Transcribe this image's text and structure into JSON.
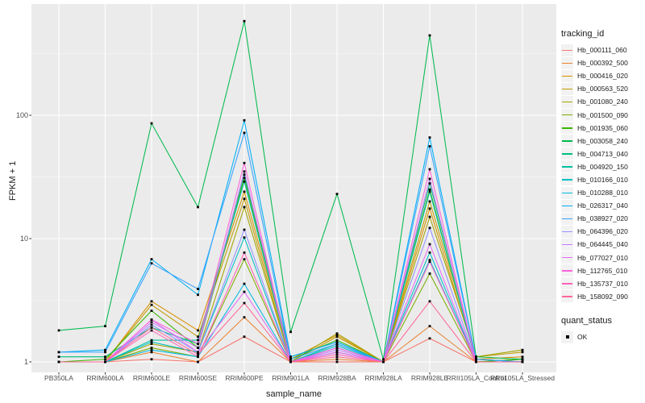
{
  "chart_data": {
    "type": "line",
    "title": "",
    "xlabel": "sample_name",
    "ylabel": "FPKM + 1",
    "y_scale": "log10",
    "y_ticks": [
      1,
      10,
      100
    ],
    "y_minor_ticks": [
      3.162,
      31.62,
      316.2
    ],
    "ylim_log": [
      0.82,
      780
    ],
    "grid": "on",
    "panel_background": "#EBEBEB",
    "gridline_color": "#FFFFFF",
    "point_marker": "black-square",
    "categories": [
      "PB350LA",
      "RRIM600LA",
      "RRIM600LE",
      "RRIM600SE",
      "RRIM600PE",
      "RRIM901LA",
      "RRIM928BA",
      "RRIM928LA",
      "RRIM928LE",
      "RRII105LA_Control",
      "RRII105LA_Stressed"
    ],
    "series": [
      {
        "name": "Hb_000111_060",
        "color": "#F8766D",
        "values": [
          1.0,
          1.0,
          1.05,
          1.0,
          1.6,
          1.0,
          1.0,
          1.0,
          1.55,
          1.0,
          1.0
        ]
      },
      {
        "name": "Hb_000392_500",
        "color": "#EA8331",
        "values": [
          1.0,
          1.0,
          1.2,
          1.0,
          2.3,
          1.0,
          1.05,
          1.0,
          1.95,
          1.0,
          1.05
        ]
      },
      {
        "name": "Hb_000416_020",
        "color": "#D89000",
        "values": [
          1.0,
          1.0,
          3.1,
          1.8,
          24,
          1.05,
          1.65,
          1.0,
          17.5,
          1.05,
          1.1
        ]
      },
      {
        "name": "Hb_000563_520",
        "color": "#C09B00",
        "values": [
          1.0,
          1.0,
          2.9,
          1.6,
          21,
          1.0,
          1.6,
          1.0,
          20,
          1.1,
          1.2
        ]
      },
      {
        "name": "Hb_001080_240",
        "color": "#A3A500",
        "values": [
          1.0,
          1.0,
          1.4,
          1.2,
          18,
          1.0,
          1.7,
          1.0,
          15,
          1.1,
          1.25
        ]
      },
      {
        "name": "Hb_001500_090",
        "color": "#7CAE00",
        "values": [
          1.0,
          1.0,
          1.3,
          1.1,
          6.8,
          1.0,
          1.2,
          1.0,
          5.2,
          1.0,
          1.05
        ]
      },
      {
        "name": "Hb_001935_060",
        "color": "#39B600",
        "values": [
          1.0,
          1.05,
          2.6,
          1.3,
          31,
          1.05,
          1.5,
          1.0,
          25,
          1.0,
          1.05
        ]
      },
      {
        "name": "Hb_003058_240",
        "color": "#00BB4E",
        "values": [
          1.8,
          1.95,
          86,
          18,
          580,
          1.75,
          23,
          1.05,
          444,
          1.1,
          1.05
        ]
      },
      {
        "name": "Hb_004713_040",
        "color": "#00BF7D",
        "values": [
          1.1,
          1.1,
          1.9,
          1.4,
          33,
          1.1,
          1.45,
          1.0,
          28,
          1.05,
          1.0
        ]
      },
      {
        "name": "Hb_004920_150",
        "color": "#00C1A3",
        "values": [
          1.0,
          1.0,
          1.5,
          1.5,
          29,
          1.0,
          1.4,
          1.0,
          24,
          1.0,
          1.0
        ]
      },
      {
        "name": "Hb_010166_010",
        "color": "#00BFC4",
        "values": [
          1.0,
          1.0,
          1.45,
          1.2,
          10.2,
          1.0,
          1.35,
          1.0,
          7.7,
          1.0,
          1.0
        ]
      },
      {
        "name": "Hb_010288_010",
        "color": "#00BAE0",
        "values": [
          1.0,
          1.0,
          1.25,
          1.1,
          4.3,
          1.0,
          1.3,
          1.0,
          6.7,
          1.0,
          1.0
        ]
      },
      {
        "name": "Hb_026317_040",
        "color": "#00B0F6",
        "values": [
          1.2,
          1.25,
          6.8,
          3.5,
          91,
          1.1,
          1.45,
          1.0,
          66,
          1.05,
          1.0
        ]
      },
      {
        "name": "Hb_038927_020",
        "color": "#35A2FF",
        "values": [
          1.2,
          1.2,
          6.3,
          3.9,
          72,
          1.05,
          1.4,
          1.0,
          56,
          1.05,
          1.0
        ]
      },
      {
        "name": "Hb_064396_020",
        "color": "#9590FF",
        "values": [
          1.0,
          1.0,
          2.0,
          1.2,
          11.8,
          1.0,
          1.2,
          1.0,
          12.2,
          1.0,
          1.0
        ]
      },
      {
        "name": "Hb_064445_040",
        "color": "#C77CFF",
        "values": [
          1.0,
          1.0,
          2.1,
          1.3,
          35,
          1.0,
          1.25,
          1.0,
          30.5,
          1.0,
          1.0
        ]
      },
      {
        "name": "Hb_077027_010",
        "color": "#E76BF3",
        "values": [
          1.0,
          1.0,
          2.2,
          1.2,
          3.7,
          1.0,
          1.2,
          1.0,
          9.0,
          1.0,
          1.0
        ]
      },
      {
        "name": "Hb_112765_010",
        "color": "#FA62DB",
        "values": [
          1.0,
          1.0,
          2.2,
          1.4,
          41,
          1.0,
          1.3,
          1.0,
          36.5,
          1.0,
          1.0
        ]
      },
      {
        "name": "Hb_135737_010",
        "color": "#FF62BC",
        "values": [
          1.0,
          1.0,
          1.8,
          1.1,
          7.7,
          1.0,
          1.15,
          1.0,
          6.5,
          1.0,
          1.0
        ]
      },
      {
        "name": "Hb_158092_090",
        "color": "#FF6A98",
        "values": [
          1.0,
          1.0,
          1.9,
          1.15,
          3.0,
          1.0,
          1.1,
          1.0,
          3.1,
          1.0,
          1.0
        ]
      }
    ],
    "legend": {
      "position": "right",
      "tracking_legend_title": "tracking_id",
      "quant_legend_title": "quant_status",
      "quant_status_label": "OK"
    }
  }
}
